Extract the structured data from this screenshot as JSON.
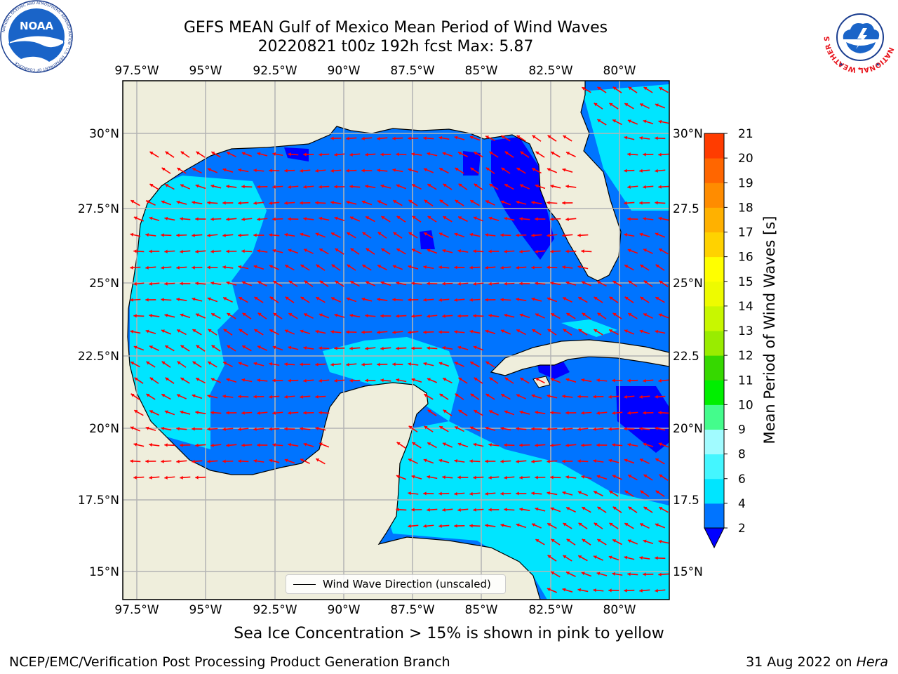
{
  "header": {
    "title_line1": "GEFS MEAN Gulf of Mexico Mean Period of Wind Waves",
    "title_line2": "20220821 t00z 192h fcst   Max: 5.87"
  },
  "logos": {
    "noaa_text": "NOAA",
    "noaa_ring_text": "NATIONAL OCEANIC AND ATMOSPHERIC ADMINISTRATION · U.S. DEPARTMENT OF COMMERCE",
    "nws_ring_text": "NATIONAL WEATHER SERVICE"
  },
  "map": {
    "lon_ticks": [
      "97.5°W",
      "95°W",
      "92.5°W",
      "90°W",
      "87.5°W",
      "85°W",
      "82.5°W",
      "80°W"
    ],
    "lat_ticks_left": [
      "30°N",
      "27.5°N",
      "25°N",
      "22.5°N",
      "20°N",
      "17.5°N",
      "15°N"
    ],
    "lat_ticks_right": [
      "30°N",
      "27.5",
      "25°N",
      "22.5",
      "20°N",
      "17.5",
      "15°N"
    ],
    "land_color": "#efeedc",
    "grid_color": "#b4b4b4",
    "arrow_color": "#ff0000",
    "legend_label": "Wind Wave Direction (unscaled)"
  },
  "colorbar": {
    "label": "Mean Period of Wind Waves [s]",
    "ticks": [
      "2",
      "4",
      "6",
      "8",
      "9",
      "10",
      "11",
      "12",
      "13",
      "14",
      "15",
      "16",
      "17",
      "18",
      "19",
      "20",
      "21"
    ],
    "colors": [
      "#0074ff",
      "#00e5ff",
      "#44f6ff",
      "#a1fbff",
      "#44fc8c",
      "#00ef00",
      "#36d800",
      "#99ec00",
      "#c8f700",
      "#eefb00",
      "#ffff00",
      "#ffd200",
      "#ffb100",
      "#ff8c00",
      "#ff6600",
      "#ff3c00",
      "#ff0000"
    ],
    "under_color": "#0000ff"
  },
  "notes": {
    "ice": "Sea Ice Concentration > 15% is shown in pink to yellow"
  },
  "footer": {
    "left": "NCEP/EMC/Verification Post Processing Product Generation Branch",
    "right_date": "31 Aug 2022 on ",
    "right_host": "Hera"
  }
}
